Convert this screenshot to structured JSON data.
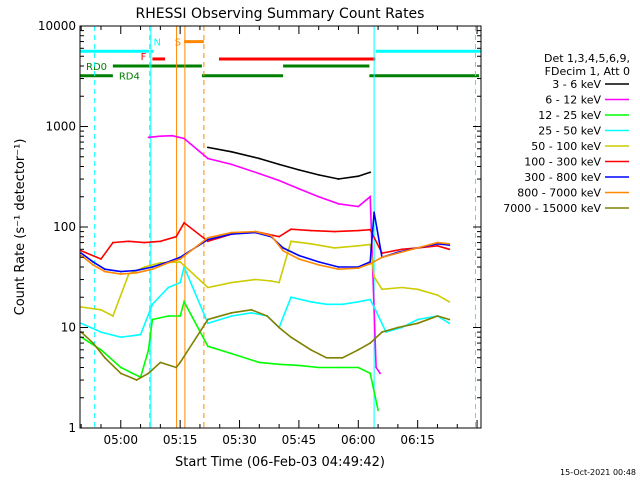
{
  "chart_data": {
    "type": "line",
    "title": "RHESSI Observing Summary Count Rates",
    "xlabel": "Start Time (06-Feb-03 04:49:42)",
    "ylabel": "Count Rate (s⁻¹ detector⁻¹)",
    "x_tick_labels": [
      "05:00",
      "05:15",
      "05:30",
      "05:45",
      "06:00",
      "06:15"
    ],
    "x_ticks_min": [
      60,
      75,
      90,
      105,
      120,
      135
    ],
    "xlim_min": [
      49.7,
      151
    ],
    "y_scale": "log",
    "ylim": [
      1,
      10000
    ],
    "y_tick_labels": [
      "1",
      "10",
      "100",
      "1000",
      "10000"
    ],
    "y_ticks": [
      1,
      10,
      100,
      1000,
      10000
    ],
    "legend_header": [
      "Det 1,3,4,5,6,9,",
      "FDecim 1, Att 0"
    ],
    "legend_position": "right",
    "timestamp": "15-Oct-2021 00:48",
    "series": [
      {
        "name": "3 - 6 keV",
        "color": "#000000",
        "points": [
          [
            82,
            620
          ],
          [
            88,
            560
          ],
          [
            95,
            480
          ],
          [
            100,
            420
          ],
          [
            105,
            370
          ],
          [
            110,
            330
          ],
          [
            115,
            300
          ],
          [
            120,
            320
          ],
          [
            123,
            350
          ]
        ]
      },
      {
        "name": "6 - 12 keV",
        "color": "#ff00ff",
        "points": [
          [
            67,
            780
          ],
          [
            70,
            800
          ],
          [
            73,
            810
          ],
          [
            76,
            760
          ],
          [
            82,
            480
          ],
          [
            88,
            420
          ],
          [
            95,
            340
          ],
          [
            100,
            290
          ],
          [
            105,
            240
          ],
          [
            110,
            200
          ],
          [
            115,
            170
          ],
          [
            120,
            160
          ],
          [
            123,
            200
          ],
          [
            124.5,
            4
          ],
          [
            125.5,
            3.5
          ]
        ]
      },
      {
        "name": "12 - 25 keV",
        "color": "#00ff00",
        "points": [
          [
            50,
            8
          ],
          [
            55,
            6
          ],
          [
            60,
            4
          ],
          [
            63,
            3.5
          ],
          [
            65,
            3.2
          ],
          [
            67,
            6
          ],
          [
            68,
            12
          ],
          [
            72,
            13
          ],
          [
            75,
            13
          ],
          [
            76,
            18
          ],
          [
            82,
            6.5
          ],
          [
            88,
            5.5
          ],
          [
            95,
            4.5
          ],
          [
            100,
            4.3
          ],
          [
            105,
            4.2
          ],
          [
            110,
            4
          ],
          [
            115,
            4
          ],
          [
            120,
            4
          ],
          [
            123,
            3.5
          ],
          [
            125,
            1.5
          ]
        ]
      },
      {
        "name": "25 - 50 keV",
        "color": "#00ffff",
        "points": [
          [
            50,
            11
          ],
          [
            55,
            9
          ],
          [
            60,
            8
          ],
          [
            65,
            8.5
          ],
          [
            68,
            17
          ],
          [
            72,
            25
          ],
          [
            75,
            28
          ],
          [
            76,
            40
          ],
          [
            82,
            11
          ],
          [
            88,
            13
          ],
          [
            93,
            14
          ],
          [
            97,
            13
          ],
          [
            100,
            10
          ],
          [
            103,
            20
          ],
          [
            108,
            18
          ],
          [
            112,
            17
          ],
          [
            116,
            17
          ],
          [
            120,
            18
          ],
          [
            123,
            19
          ],
          [
            124,
            16
          ],
          [
            127,
            9
          ],
          [
            131,
            10
          ],
          [
            135,
            12
          ],
          [
            140,
            13
          ],
          [
            143,
            11
          ]
        ]
      },
      {
        "name": "50 - 100 keV",
        "color": "#cccc00",
        "points": [
          [
            50,
            16
          ],
          [
            55,
            15
          ],
          [
            58,
            13
          ],
          [
            62,
            34
          ],
          [
            66,
            40
          ],
          [
            70,
            44
          ],
          [
            75,
            45
          ],
          [
            82,
            25
          ],
          [
            88,
            28
          ],
          [
            94,
            30
          ],
          [
            98,
            29
          ],
          [
            100,
            28
          ],
          [
            103,
            72
          ],
          [
            108,
            68
          ],
          [
            114,
            62
          ],
          [
            120,
            65
          ],
          [
            123,
            67
          ],
          [
            124,
            32
          ],
          [
            126,
            24
          ],
          [
            131,
            25
          ],
          [
            135,
            24
          ],
          [
            140,
            21
          ],
          [
            143,
            18
          ]
        ]
      },
      {
        "name": "100 - 300 keV",
        "color": "#ff0000",
        "points": [
          [
            50,
            58
          ],
          [
            55,
            48
          ],
          [
            58,
            70
          ],
          [
            62,
            72
          ],
          [
            66,
            70
          ],
          [
            70,
            72
          ],
          [
            74,
            80
          ],
          [
            76,
            110
          ],
          [
            82,
            72
          ],
          [
            88,
            85
          ],
          [
            94,
            90
          ],
          [
            100,
            80
          ],
          [
            103,
            95
          ],
          [
            108,
            92
          ],
          [
            114,
            90
          ],
          [
            120,
            92
          ],
          [
            123,
            94
          ],
          [
            126,
            55
          ],
          [
            131,
            60
          ],
          [
            135,
            62
          ],
          [
            140,
            65
          ],
          [
            143,
            60
          ]
        ]
      },
      {
        "name": "300 - 800 keV",
        "color": "#0000ff",
        "points": [
          [
            50,
            55
          ],
          [
            53,
            45
          ],
          [
            56,
            38
          ],
          [
            60,
            36
          ],
          [
            64,
            37
          ],
          [
            68,
            40
          ],
          [
            72,
            45
          ],
          [
            75,
            50
          ],
          [
            82,
            75
          ],
          [
            88,
            85
          ],
          [
            94,
            88
          ],
          [
            98,
            80
          ],
          [
            101,
            62
          ],
          [
            105,
            52
          ],
          [
            110,
            45
          ],
          [
            115,
            40
          ],
          [
            120,
            40
          ],
          [
            123,
            45
          ],
          [
            124,
            140
          ],
          [
            126,
            50
          ],
          [
            130,
            56
          ],
          [
            135,
            62
          ],
          [
            140,
            68
          ],
          [
            143,
            66
          ]
        ]
      },
      {
        "name": "800 - 7000 keV",
        "color": "#ff8800",
        "points": [
          [
            50,
            52
          ],
          [
            53,
            42
          ],
          [
            56,
            36
          ],
          [
            60,
            34
          ],
          [
            64,
            35
          ],
          [
            68,
            38
          ],
          [
            72,
            44
          ],
          [
            75,
            48
          ],
          [
            82,
            78
          ],
          [
            88,
            88
          ],
          [
            94,
            90
          ],
          [
            98,
            82
          ],
          [
            101,
            58
          ],
          [
            105,
            48
          ],
          [
            110,
            42
          ],
          [
            115,
            38
          ],
          [
            120,
            39
          ],
          [
            123,
            43
          ],
          [
            126,
            50
          ],
          [
            130,
            55
          ],
          [
            135,
            62
          ],
          [
            140,
            70
          ],
          [
            143,
            68
          ]
        ]
      },
      {
        "name": "7000 - 15000 keV",
        "color": "#808000",
        "points": [
          [
            50,
            9
          ],
          [
            53,
            7
          ],
          [
            56,
            5
          ],
          [
            60,
            3.5
          ],
          [
            64,
            3
          ],
          [
            67,
            3.5
          ],
          [
            70,
            4.5
          ],
          [
            74,
            4
          ],
          [
            75,
            4.5
          ],
          [
            82,
            12
          ],
          [
            88,
            14
          ],
          [
            93,
            15
          ],
          [
            97,
            13
          ],
          [
            100,
            10
          ],
          [
            103,
            8
          ],
          [
            108,
            6
          ],
          [
            112,
            5
          ],
          [
            116,
            5
          ],
          [
            120,
            6
          ],
          [
            123,
            7
          ],
          [
            126,
            9
          ],
          [
            130,
            10
          ],
          [
            135,
            11
          ],
          [
            140,
            13
          ],
          [
            143,
            12
          ]
        ]
      }
    ],
    "status_bars": [
      {
        "label": "",
        "color": "#00ffff",
        "segments": [
          [
            49.7,
            67.2
          ],
          [
            124.5,
            151
          ]
        ],
        "level": 5600
      },
      {
        "label": "N",
        "color": "#00ffff",
        "segments": [
          [
            67.5,
            68.3
          ]
        ],
        "level": 5600
      },
      {
        "label": "F",
        "color": "#ff0000",
        "segments": [
          [
            68.0,
            71.2
          ]
        ],
        "level": 4700
      },
      {
        "label": "S",
        "color": "#ff8800",
        "segments": [
          [
            76.0,
            81.0
          ]
        ],
        "level": 7000
      },
      {
        "label": "",
        "color": "#ff0000",
        "segments": [
          [
            84.8,
            124.3
          ]
        ],
        "level": 4700
      },
      {
        "label": "RD0",
        "color": "#008000",
        "segments": [
          [
            58.0,
            80.5
          ],
          [
            101.0,
            122.8
          ]
        ],
        "level": 4000
      },
      {
        "label": "RD4",
        "color": "#008000",
        "segments": [
          [
            49.7,
            58.0
          ],
          [
            80.5,
            101.0
          ],
          [
            122.8,
            150.5
          ]
        ],
        "level": 3200
      }
    ],
    "vertical_markers": [
      {
        "color": "#00ffff",
        "style": "dashed",
        "x": 53.4
      },
      {
        "color": "#00ffff",
        "style": "dashed",
        "x": 67.3
      },
      {
        "color": "#00ffff",
        "style": "solid",
        "x": 67.6
      },
      {
        "color": "#ff8800",
        "style": "solid",
        "x": 74.1
      },
      {
        "color": "#ff8800",
        "style": "solid",
        "x": 76.2
      },
      {
        "color": "#ff8800",
        "style": "dashed",
        "x": 81.0
      },
      {
        "color": "#00ffff",
        "style": "solid",
        "x": 124.0
      },
      {
        "color": "#00ffff",
        "style": "dashed",
        "x": 149.6
      }
    ]
  }
}
